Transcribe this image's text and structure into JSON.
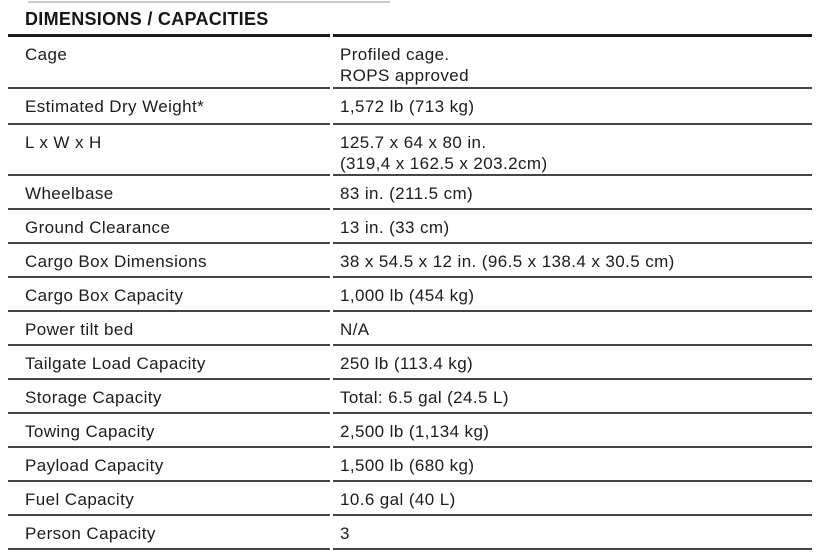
{
  "title": "DIMENSIONS / CAPACITIES",
  "table": {
    "rows": [
      {
        "label": "Cage",
        "value": "Profiled cage.\nROPS approved"
      },
      {
        "label": "Estimated Dry Weight*",
        "value": "1,572 lb (713 kg)"
      },
      {
        "label": "L x W x H",
        "value": "125.7 x 64 x 80 in.\n(319,4 x 162.5 x 203.2cm)"
      },
      {
        "label": "Wheelbase",
        "value": "83 in. (211.5 cm)"
      },
      {
        "label": "Ground Clearance",
        "value": "13 in. (33 cm)"
      },
      {
        "label": "Cargo Box Dimensions",
        "value": "38 x 54.5 x 12 in. (96.5 x 138.4 x 30.5 cm)"
      },
      {
        "label": "Cargo Box Capacity",
        "value": "1,000 lb (454 kg)"
      },
      {
        "label": "Power tilt bed",
        "value": "N/A"
      },
      {
        "label": "Tailgate Load Capacity",
        "value": "250 lb (113.4 kg)"
      },
      {
        "label": "Storage Capacity",
        "value": "Total: 6.5 gal (24.5 L)"
      },
      {
        "label": "Towing Capacity",
        "value": "2,500 lb (1,134 kg)"
      },
      {
        "label": "Payload Capacity",
        "value": "1,500 lb (680 kg)"
      },
      {
        "label": "Fuel Capacity",
        "value": "10.6 gal (40 L)"
      },
      {
        "label": "Person Capacity",
        "value": "3"
      }
    ]
  },
  "colors": {
    "text": "#1c1c1b",
    "rule_thick": "#1a1a1a",
    "rule_thin": "#454545",
    "background": "#ffffff"
  }
}
